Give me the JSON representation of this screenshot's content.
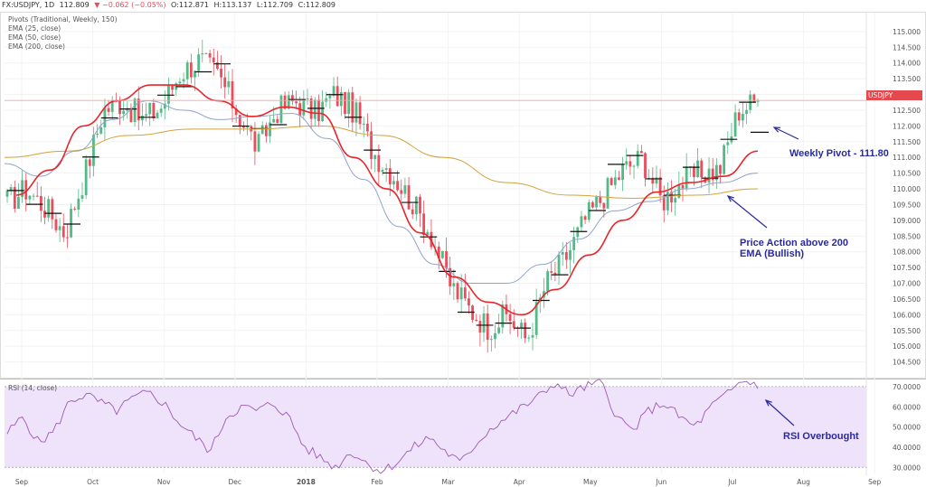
{
  "header": {
    "symbol": "FX:USDJPY, 1D",
    "last": "112.809",
    "change": "▼ −0.062 (−0.05%)",
    "open": "O:112.871",
    "high": "H:113.137",
    "low": "L:112.709",
    "close": "C:112.809"
  },
  "indicators": [
    "Pivots (Traditional, Weekly, 150)",
    "EMA (25, close)",
    "EMA (50, close)",
    "EMA (200, close)"
  ],
  "rsi_label": "RSI (14, close)",
  "price_tag": {
    "symbol": "USDJPY",
    "value": "112.809"
  },
  "annotations": {
    "pivot": "Weekly Pivot - 111.80",
    "price_action": [
      "Price Action above 200",
      "EMA (Bullish)"
    ],
    "rsi": "RSI Overbought"
  },
  "colors": {
    "up": "#53b987",
    "down": "#eb4d5c",
    "ema25": "#e8252a",
    "ema50": "#8fa3cc",
    "ema200": "#d4a23c",
    "rsi_line": "#9b59b6",
    "rsi_band": "#efe2fb",
    "annotation": "#2a2a9e",
    "price_line": "#f4a3a6"
  },
  "chart_data": [
    {
      "type": "candlestick",
      "title": "FX:USDJPY, 1D",
      "ylim": [
        104.0,
        115.6
      ],
      "y_ticks": [
        "115.000",
        "114.500",
        "114.000",
        "113.500",
        "113.000",
        "112.500",
        "112.000",
        "111.500",
        "111.000",
        "110.500",
        "110.000",
        "109.500",
        "109.000",
        "108.500",
        "108.000",
        "107.500",
        "107.000",
        "106.500",
        "106.000",
        "105.500",
        "105.000",
        "104.500"
      ],
      "x_ticks": [
        "Sep",
        "Oct",
        "Nov",
        "Dec",
        "2018",
        "Feb",
        "Mar",
        "Apr",
        "May",
        "Jun",
        "Jul",
        "Aug",
        "Sep"
      ],
      "close_path": [
        [
          "Sep",
          109.6
        ],
        [
          "Sep",
          110.0
        ],
        [
          "Sep",
          109.4
        ],
        [
          "Sep",
          108.6
        ],
        [
          "Sep",
          110.4
        ],
        [
          "Oct",
          112.5
        ],
        [
          "Oct",
          112.8
        ],
        [
          "Oct",
          112.2
        ],
        [
          "Oct",
          112.6
        ],
        [
          "Nov",
          113.7
        ],
        [
          "Nov",
          114.1
        ],
        [
          "Nov",
          113.6
        ],
        [
          "Nov",
          112.4
        ],
        [
          "Nov",
          111.3
        ],
        [
          "Dec",
          112.5
        ],
        [
          "Dec",
          112.8
        ],
        [
          "Dec",
          112.4
        ],
        [
          "Dec",
          113.0
        ],
        [
          "2018",
          112.5
        ],
        [
          "2018",
          111.2
        ],
        [
          "2018",
          110.5
        ],
        [
          "Feb",
          109.6
        ],
        [
          "Feb",
          108.6
        ],
        [
          "Feb",
          107.0
        ],
        [
          "Mar",
          106.2
        ],
        [
          "Mar",
          105.6
        ],
        [
          "Mar",
          106.0
        ],
        [
          "Mar",
          105.2
        ],
        [
          "Apr",
          107.0
        ],
        [
          "Apr",
          107.8
        ],
        [
          "Apr",
          109.0
        ],
        [
          "May",
          109.8
        ],
        [
          "May",
          110.6
        ],
        [
          "May",
          111.0
        ],
        [
          "Jun",
          109.6
        ],
        [
          "Jun",
          110.2
        ],
        [
          "Jun",
          110.5
        ],
        [
          "Jul",
          110.6
        ],
        [
          "Jul",
          112.5
        ],
        [
          "Jul",
          112.809
        ]
      ],
      "ema25": [
        109.8,
        110.6,
        112.0,
        112.8,
        113.3,
        113.3,
        112.8,
        112.3,
        112.6,
        112.4,
        111.0,
        110.0,
        108.6,
        107.2,
        106.4,
        106.0,
        106.8,
        107.9,
        109.0,
        109.9,
        110.2,
        110.4,
        111.2
      ],
      "ema50": [
        110.8,
        110.4,
        111.2,
        112.2,
        112.8,
        112.5,
        112.2,
        112.3,
        112.4,
        111.6,
        110.3,
        108.8,
        107.6,
        107.0,
        107.0,
        107.6,
        108.4,
        109.3,
        109.6,
        110.0,
        110.2,
        110.5
      ],
      "ema200": [
        111.0,
        111.2,
        111.7,
        111.9,
        111.9,
        112.0,
        111.7,
        111.0,
        110.2,
        109.8,
        109.7,
        109.8,
        110.0
      ],
      "last_price": 112.809,
      "pivot_annotation": 111.8
    },
    {
      "type": "line",
      "title": "RSI (14, close)",
      "ylim": [
        27,
        74
      ],
      "y_ticks": [
        "70.0000",
        "60.0000",
        "50.0000",
        "40.0000",
        "30.0000"
      ],
      "band": [
        30,
        70
      ],
      "values": [
        47,
        55,
        42,
        48,
        63,
        66,
        62,
        58,
        64,
        67,
        62,
        52,
        45,
        38,
        55,
        60,
        58,
        62,
        55,
        40,
        35,
        30,
        38,
        32,
        28,
        33,
        40,
        45,
        38,
        32,
        42,
        50,
        55,
        60,
        65,
        72,
        66,
        70,
        72,
        55,
        48,
        58,
        62,
        55,
        50,
        60,
        66,
        73,
        71
      ]
    }
  ]
}
